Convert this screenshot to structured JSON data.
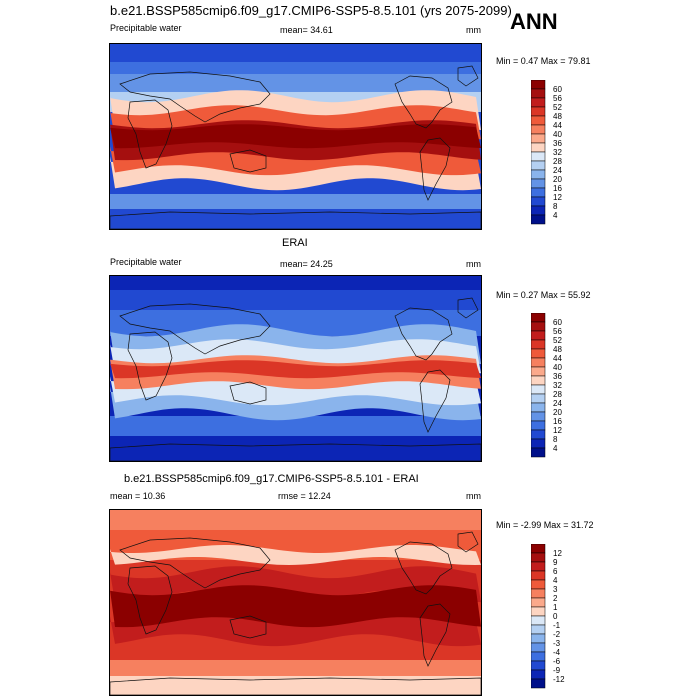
{
  "header": {
    "title": "b.e21.BSSP585cmip6.f09_g17.CMIP6-SSP5-8.5.101 (yrs 2075-2099)",
    "season": "ANN"
  },
  "chart_data": [
    {
      "type": "heatmap",
      "panel": "model",
      "variable": "Precipitable water",
      "mean_label": "mean=  34.61",
      "units": "mm",
      "minmax_label": "Min =   0.47 Max =  79.81",
      "min": 0.47,
      "max": 79.81,
      "mean": 34.61,
      "colorbar_levels": [
        "60",
        "56",
        "52",
        "48",
        "44",
        "40",
        "36",
        "32",
        "28",
        "24",
        "20",
        "16",
        "12",
        "8",
        "4"
      ],
      "colors": [
        "#8b0000",
        "#a50f0f",
        "#c21d1d",
        "#db3626",
        "#ef5a3a",
        "#f6805f",
        "#fba98b",
        "#fdd5c2",
        "#dbe8f7",
        "#b4d0f2",
        "#8ab4ec",
        "#6393e6",
        "#3d6fe0",
        "#2149d1",
        "#0c25b5",
        "#00108a"
      ]
    },
    {
      "type": "heatmap",
      "panel": "obs",
      "panel_title": "ERAI",
      "variable": "Precipitable water",
      "mean_label": "mean=  24.25",
      "units": "mm",
      "minmax_label": "Min =   0.27 Max =  55.92",
      "min": 0.27,
      "max": 55.92,
      "mean": 24.25,
      "colorbar_levels": [
        "60",
        "56",
        "52",
        "48",
        "44",
        "40",
        "36",
        "32",
        "28",
        "24",
        "20",
        "16",
        "12",
        "8",
        "4"
      ],
      "colors": [
        "#8b0000",
        "#a50f0f",
        "#c21d1d",
        "#db3626",
        "#ef5a3a",
        "#f6805f",
        "#fba98b",
        "#fdd5c2",
        "#dbe8f7",
        "#b4d0f2",
        "#8ab4ec",
        "#6393e6",
        "#3d6fe0",
        "#2149d1",
        "#0c25b5",
        "#00108a"
      ]
    },
    {
      "type": "heatmap",
      "panel": "diff",
      "panel_title": "b.e21.BSSP585cmip6.f09_g17.CMIP6-SSP5-8.5.101 - ERAI",
      "mean_label": "mean =  10.36",
      "rmse_label": "rmse =  12.24",
      "units": "mm",
      "minmax_label": "Min =  -2.99 Max =  31.72",
      "min": -2.99,
      "max": 31.72,
      "mean": 10.36,
      "rmse": 12.24,
      "colorbar_levels": [
        "12",
        "9",
        "6",
        "4",
        "3",
        "2",
        "1",
        "0",
        "-1",
        "-2",
        "-3",
        "-4",
        "-6",
        "-9",
        "-12"
      ],
      "colors": [
        "#8b0000",
        "#a50f0f",
        "#c21d1d",
        "#db3626",
        "#ef5a3a",
        "#f6805f",
        "#fba98b",
        "#fdd5c2",
        "#dbe8f7",
        "#b4d0f2",
        "#8ab4ec",
        "#6393e6",
        "#3d6fe0",
        "#2149d1",
        "#0c25b5",
        "#00108a"
      ]
    }
  ]
}
